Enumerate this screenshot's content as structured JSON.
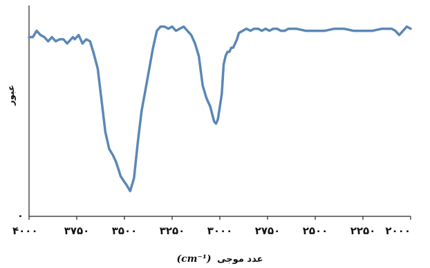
{
  "chart_data": {
    "type": "line",
    "title": "",
    "xlabel": "عدد موجی",
    "xlabel_unit": "(cm⁻¹)",
    "ylabel": "عبور",
    "xlim": [
      4000,
      2000
    ],
    "x_reversed": true,
    "ylim": [
      0,
      100
    ],
    "x_tick_labels": [
      "۴۰۰۰",
      "۳۷۵۰",
      "۳۵۰۰",
      "۳۲۵۰",
      "۳۰۰۰",
      "۲۷۵۰",
      "۲۵۰۰",
      "۲۲۵۰",
      "۲۰۰۰"
    ],
    "x_ticks": [
      4000,
      3750,
      3500,
      3250,
      3000,
      2750,
      2500,
      2250,
      2000
    ],
    "y_tick_labels": [
      "۰"
    ],
    "y_ticks": [
      0
    ],
    "grid": false,
    "line_color": "#5b87b5",
    "series": [
      {
        "x": [
          4000,
          3980,
          3960,
          3940,
          3920,
          3900,
          3880,
          3860,
          3840,
          3820,
          3800,
          3780,
          3770,
          3760,
          3740,
          3720,
          3700,
          3680,
          3660,
          3640,
          3620,
          3600,
          3580,
          3560,
          3545,
          3530,
          3520,
          3505,
          3490,
          3470,
          3450,
          3430,
          3410,
          3390,
          3370,
          3350,
          3330,
          3310,
          3290,
          3270,
          3250,
          3230,
          3210,
          3190,
          3170,
          3150,
          3130,
          3110,
          3090,
          3070,
          3050,
          3030,
          3020,
          3010,
          3000,
          2990,
          2980,
          2970,
          2960,
          2950,
          2940,
          2930,
          2920,
          2910,
          2900,
          2880,
          2860,
          2840,
          2820,
          2800,
          2780,
          2760,
          2740,
          2720,
          2700,
          2680,
          2660,
          2640,
          2600,
          2550,
          2500,
          2450,
          2400,
          2350,
          2300,
          2250,
          2200,
          2150,
          2100,
          2080,
          2060,
          2040,
          2020,
          2000
        ],
        "y": [
          85,
          85,
          88,
          86,
          85,
          83,
          85,
          83,
          84,
          84,
          82,
          84,
          85,
          84,
          86,
          82,
          84,
          83,
          77,
          70,
          55,
          40,
          32,
          29,
          26,
          22,
          19,
          17,
          15,
          12,
          18,
          35,
          50,
          60,
          70,
          80,
          88,
          90,
          90,
          89,
          90,
          88,
          89,
          90,
          88,
          86,
          82,
          76,
          62,
          56,
          52,
          45,
          44,
          46,
          52,
          58,
          72,
          76,
          78,
          78,
          80,
          80,
          82,
          84,
          87,
          88,
          89,
          88,
          89,
          89,
          88,
          89,
          88,
          89,
          89,
          88,
          88,
          89,
          89,
          88,
          88,
          88,
          89,
          89,
          88,
          88,
          88,
          89,
          89,
          88,
          86,
          88,
          90,
          89
        ]
      }
    ]
  }
}
